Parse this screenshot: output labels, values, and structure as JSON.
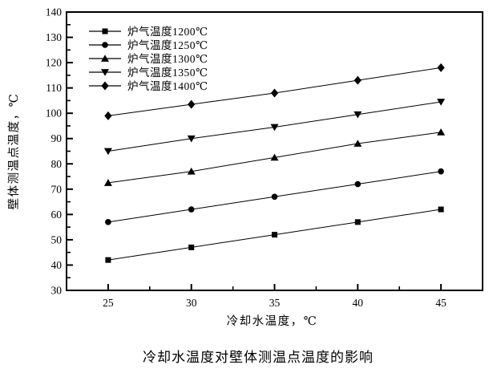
{
  "chart": {
    "caption": "冷却水温度对壁体测温点温度的影响"
  },
  "chart_data": {
    "type": "line",
    "x": [
      25,
      30,
      35,
      40,
      45
    ],
    "series": [
      {
        "name": "炉气温度1200℃",
        "marker": "square",
        "values": [
          42,
          47,
          52,
          57,
          62
        ]
      },
      {
        "name": "炉气温度1250℃",
        "marker": "circle",
        "values": [
          57,
          62,
          67,
          72,
          77
        ]
      },
      {
        "name": "炉气温度1300℃",
        "marker": "triangle-up",
        "values": [
          72.5,
          77,
          82.5,
          88,
          92.5
        ]
      },
      {
        "name": "炉气温度1350℃",
        "marker": "triangle-down",
        "values": [
          85,
          90,
          94.5,
          99.5,
          104.5
        ]
      },
      {
        "name": "炉气温度1400℃",
        "marker": "diamond",
        "values": [
          99,
          103.5,
          108,
          113,
          118
        ]
      }
    ],
    "title": "冷却水温度对壁体测温点温度的影响",
    "xlabel": "冷却水温度，℃",
    "ylabel": "壁体测温点温度，℃",
    "xlim": [
      22.5,
      47.5
    ],
    "ylim": [
      30,
      140
    ],
    "x_major_tick_step": 5,
    "x_minor_tick_step": 2.5,
    "y_major_tick_step": 10,
    "y_minor_tick_step": 5,
    "grid": false,
    "legend_position": "upper-left-inside",
    "colors": {
      "foreground": "#000000",
      "background": "#ffffff"
    }
  }
}
